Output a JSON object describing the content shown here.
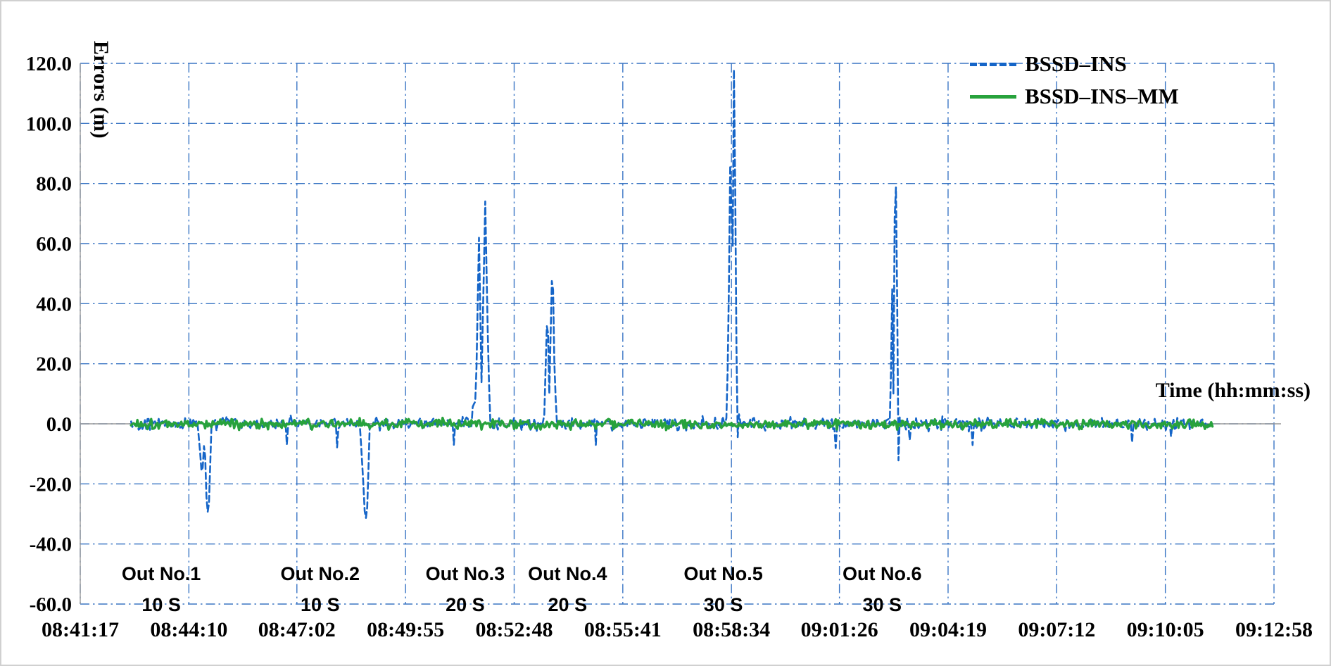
{
  "figure": {
    "background": "#ffffff",
    "border_color": "#d0d0d0"
  },
  "chart_data": {
    "type": "line",
    "title": "",
    "xlabel": "Time (hh:mm:ss)",
    "ylabel": "Errors (m)",
    "ylim": [
      -60,
      120
    ],
    "grid": "dash-dot",
    "grid_color": "#3a75c4",
    "legend_position": "top-right",
    "y_ticks": [
      "120.0",
      "100.0",
      "80.0",
      "60.0",
      "40.0",
      "20.0",
      "0.0",
      "-20.0",
      "-40.0",
      "-60.0"
    ],
    "x_ticks": [
      "08:41:17",
      "08:44:10",
      "08:47:02",
      "08:49:55",
      "08:52:48",
      "08:55:41",
      "08:58:34",
      "09:01:26",
      "09:04:19",
      "09:07:12",
      "09:10:05",
      "09:12:58"
    ],
    "series": [
      {
        "name": "BSSD–INS",
        "color": "#1565c8",
        "style": "dashed",
        "width": 2.6,
        "start": "08:42:38",
        "end": "09:11:20",
        "noise_amp": 3.0,
        "dips": true,
        "spikes": [
          {
            "center": "08:44:43",
            "points": [
              [
                -18,
                -2
              ],
              [
                -12,
                -18
              ],
              [
                -8,
                -4
              ],
              [
                -4,
                -31
              ],
              [
                0,
                -24
              ],
              [
                2,
                -3
              ]
            ]
          },
          {
            "center": "08:48:57",
            "points": [
              [
                -14,
                -2
              ],
              [
                -9,
                -21
              ],
              [
                -6,
                -33
              ],
              [
                -2,
                -26
              ],
              [
                0,
                -4
              ]
            ]
          },
          {
            "center": "08:52:07",
            "points": [
              [
                -26,
                5
              ],
              [
                -20,
                8
              ],
              [
                -15,
                62
              ],
              [
                -11,
                14
              ],
              [
                -5,
                74
              ],
              [
                -1,
                30
              ],
              [
                2,
                5
              ]
            ]
          },
          {
            "center": "08:53:52",
            "points": [
              [
                -16,
                3
              ],
              [
                -11,
                40
              ],
              [
                -8,
                10
              ],
              [
                -3,
                57
              ],
              [
                0,
                20
              ],
              [
                3,
                3
              ]
            ]
          },
          {
            "center": "08:58:41",
            "points": [
              [
                -14,
                4
              ],
              [
                -10,
                60
              ],
              [
                -8,
                112
              ],
              [
                -6,
                30
              ],
              [
                -3,
                118
              ],
              [
                0,
                60
              ],
              [
                2,
                -8
              ],
              [
                5,
                3
              ]
            ]
          },
          {
            "center": "09:02:57",
            "points": [
              [
                -10,
                3
              ],
              [
                -7,
                45
              ],
              [
                -5,
                10
              ],
              [
                -2,
                98
              ],
              [
                1,
                40
              ],
              [
                3,
                -12
              ],
              [
                5,
                2
              ]
            ]
          }
        ]
      },
      {
        "name": "BSSD–INS–MM",
        "color": "#27a23c",
        "style": "solid",
        "width": 3.4,
        "start": "08:42:38",
        "end": "09:11:20",
        "noise_amp": 2.4,
        "dips": false,
        "spikes": []
      }
    ],
    "annotations": [
      {
        "label": "Out No.1",
        "duration": "10 S",
        "time": "08:43:26"
      },
      {
        "label": "Out No.2",
        "duration": "10 S",
        "time": "08:47:39"
      },
      {
        "label": "Out No.3",
        "duration": "20 S",
        "time": "08:51:30"
      },
      {
        "label": "Out No.4",
        "duration": "20 S",
        "time": "08:54:13"
      },
      {
        "label": "Out No.5",
        "duration": "30 S",
        "time": "08:58:21"
      },
      {
        "label": "Out No.6",
        "duration": "30 S",
        "time": "09:02:34"
      }
    ]
  }
}
